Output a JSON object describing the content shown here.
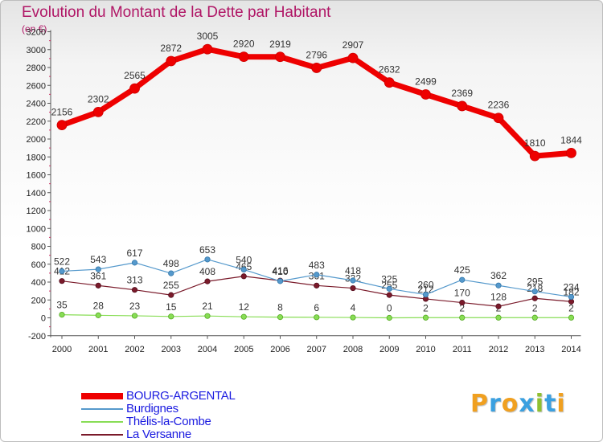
{
  "header": {
    "title": "Evolution du Montant de la Dette par Habitant",
    "subtitle": "(en €)"
  },
  "brand": {
    "name": "Proxiti",
    "letter_colors": [
      "#f0a020",
      "#3aa0e0",
      "#f0a020",
      "#3aa0e0",
      "#90c030",
      "#3aa0e0",
      "#f0a020"
    ]
  },
  "chart_data": {
    "type": "line",
    "x": [
      2000,
      2001,
      2002,
      2003,
      2004,
      2005,
      2006,
      2007,
      2008,
      2009,
      2010,
      2011,
      2012,
      2013,
      2014
    ],
    "ylim": [
      -200,
      3200
    ],
    "yticks": [
      -200,
      0,
      200,
      400,
      600,
      800,
      1000,
      1200,
      1400,
      1600,
      1800,
      2000,
      2200,
      2400,
      2600,
      2800,
      3000,
      3200
    ],
    "grid": false,
    "legend_position": "bottom-left",
    "series": [
      {
        "name": "BOURG-ARGENTAL",
        "color": "#ee0000",
        "values": [
          2156,
          2302,
          2565,
          2872,
          3005,
          2920,
          2919,
          2796,
          2907,
          2632,
          2499,
          2369,
          2236,
          1810,
          1844
        ]
      },
      {
        "name": "Burdignes",
        "color": "#5599cc",
        "values": [
          522,
          543,
          617,
          498,
          653,
          540,
          410,
          483,
          418,
          325,
          260,
          425,
          362,
          295,
          234
        ]
      },
      {
        "name": "Thélis-la-Combe",
        "color": "#88dd55",
        "values": [
          35,
          28,
          23,
          15,
          21,
          12,
          8,
          6,
          4,
          0,
          2,
          2,
          2,
          2,
          2
        ]
      },
      {
        "name": "La Versanne",
        "color": "#7a1a2a",
        "values": [
          412,
          361,
          313,
          255,
          408,
          465,
          416,
          361,
          332,
          255,
          212,
          170,
          128,
          218,
          182
        ]
      }
    ]
  }
}
